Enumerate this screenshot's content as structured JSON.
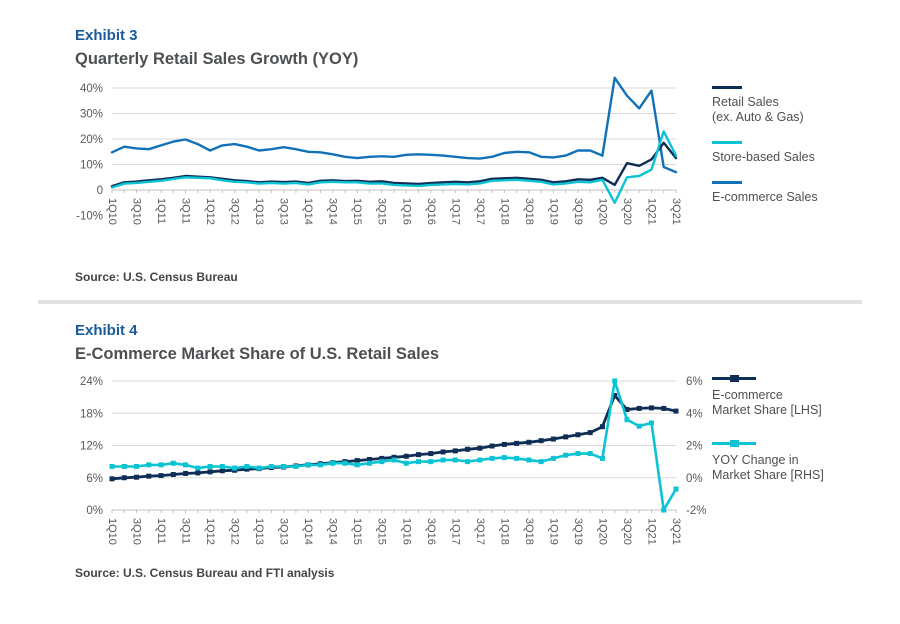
{
  "colors": {
    "navy": "#0e2e55",
    "cyan": "#0cc3d4",
    "blue": "#1272b8",
    "heading_blue": "#1b5a9b",
    "title_gray": "#4d5053",
    "source_gray": "#454545",
    "axis_gray": "#595959",
    "grid": "#d8d8d8",
    "axis_line": "#c2c2c2",
    "divider": "#e1e1e3"
  },
  "exhibit3": {
    "heading": "Exhibit 3",
    "title": "Quarterly Retail Sales Growth (YOY)",
    "source": "Source: U.S. Census Bureau",
    "legend": [
      {
        "lines": [
          "Retail Sales",
          "(ex. Auto & Gas)"
        ],
        "color_key": "navy"
      },
      {
        "lines": [
          "Store-based Sales",
          ""
        ],
        "color_key": "cyan"
      },
      {
        "lines": [
          "E-commerce Sales",
          ""
        ],
        "color_key": "blue"
      }
    ]
  },
  "exhibit4": {
    "heading": "Exhibit 4",
    "title": "E-Commerce Market Share of U.S. Retail Sales",
    "source": "Source: U.S. Census Bureau and FTI analysis",
    "legend": [
      {
        "lines": [
          "E-commerce",
          "Market Share [LHS]"
        ],
        "color_key": "navy"
      },
      {
        "lines": [
          "YOY Change in",
          "Market Share [RHS]"
        ],
        "color_key": "cyan"
      }
    ]
  },
  "chart_data": [
    {
      "type": "line",
      "title": "Quarterly Retail Sales Growth (YOY)",
      "x": [
        "1Q10",
        "2Q10",
        "3Q10",
        "4Q10",
        "1Q11",
        "2Q11",
        "3Q11",
        "4Q11",
        "1Q12",
        "2Q12",
        "3Q12",
        "4Q12",
        "1Q13",
        "2Q13",
        "3Q13",
        "4Q13",
        "1Q14",
        "2Q14",
        "3Q14",
        "4Q14",
        "1Q15",
        "2Q15",
        "3Q15",
        "4Q15",
        "1Q16",
        "2Q16",
        "3Q16",
        "4Q16",
        "1Q17",
        "2Q17",
        "3Q17",
        "4Q17",
        "1Q18",
        "2Q18",
        "3Q18",
        "4Q18",
        "1Q19",
        "2Q19",
        "3Q19",
        "4Q19",
        "1Q20",
        "2Q20",
        "3Q20",
        "4Q20",
        "1Q21",
        "2Q21",
        "3Q21"
      ],
      "x_tick_labels": [
        "1Q10",
        "3Q10",
        "1Q11",
        "3Q11",
        "1Q12",
        "3Q12",
        "1Q13",
        "3Q13",
        "1Q14",
        "3Q14",
        "1Q15",
        "3Q15",
        "1Q16",
        "3Q16",
        "1Q17",
        "3Q17",
        "1Q18",
        "3Q18",
        "1Q19",
        "3Q19",
        "1Q20",
        "3Q20",
        "1Q21",
        "3Q21"
      ],
      "ylim": [
        -10,
        44
      ],
      "y_gridlines": [
        {
          "value": 40,
          "label": "40%",
          "line": true
        },
        {
          "value": 30,
          "label": "30%",
          "line": true
        },
        {
          "value": 20,
          "label": "20%",
          "line": true
        },
        {
          "value": 10,
          "label": "10%",
          "line": true
        },
        {
          "value": 0,
          "label": "0",
          "line": true,
          "axis": true
        },
        {
          "value": -10,
          "label": "-10%",
          "line": false
        }
      ],
      "grid": "horizontal",
      "legend_position": "right",
      "series": [
        {
          "name": "E-commerce Sales",
          "color_key": "blue",
          "marker": false,
          "values": [
            14.8,
            17.0,
            16.3,
            16.0,
            17.5,
            19.0,
            19.8,
            18.0,
            15.5,
            17.5,
            18.0,
            17.0,
            15.5,
            16.0,
            16.8,
            16.0,
            15.0,
            14.8,
            14.0,
            13.0,
            12.5,
            13.0,
            13.2,
            13.0,
            13.8,
            14.0,
            13.8,
            13.5,
            13.0,
            12.5,
            12.3,
            13.0,
            14.5,
            15.0,
            14.8,
            13.0,
            12.8,
            13.5,
            15.5,
            15.5,
            13.5,
            44.0,
            37.0,
            32.0,
            39.0,
            9.0,
            7.0
          ]
        },
        {
          "name": "Retail Sales (ex. Auto & Gas)",
          "color_key": "navy",
          "marker": false,
          "values": [
            1.5,
            3.0,
            3.3,
            3.8,
            4.2,
            4.8,
            5.5,
            5.2,
            5.0,
            4.4,
            3.8,
            3.5,
            3.0,
            3.3,
            3.1,
            3.3,
            2.8,
            3.6,
            3.8,
            3.5,
            3.6,
            3.2,
            3.4,
            2.8,
            2.6,
            2.4,
            2.7,
            3.0,
            3.2,
            3.0,
            3.4,
            4.4,
            4.6,
            4.8,
            4.4,
            4.0,
            3.0,
            3.4,
            4.2,
            4.0,
            4.8,
            2.0,
            10.5,
            9.5,
            12.0,
            18.5,
            12.5
          ]
        },
        {
          "name": "Store-based Sales",
          "color_key": "cyan",
          "marker": false,
          "values": [
            1.0,
            2.5,
            2.8,
            3.2,
            3.6,
            4.3,
            5.0,
            4.8,
            4.6,
            3.8,
            3.2,
            3.0,
            2.5,
            2.8,
            2.5,
            2.8,
            2.2,
            3.0,
            3.2,
            3.0,
            3.0,
            2.5,
            2.6,
            2.0,
            1.8,
            1.6,
            2.0,
            2.2,
            2.4,
            2.2,
            2.6,
            3.6,
            3.8,
            4.0,
            3.6,
            3.2,
            2.2,
            2.6,
            3.2,
            3.0,
            4.0,
            -5.0,
            5.0,
            5.5,
            8.0,
            23.0,
            13.5
          ]
        }
      ]
    },
    {
      "type": "line",
      "title": "E-Commerce Market Share of U.S. Retail Sales",
      "x": [
        "1Q10",
        "2Q10",
        "3Q10",
        "4Q10",
        "1Q11",
        "2Q11",
        "3Q11",
        "4Q11",
        "1Q12",
        "2Q12",
        "3Q12",
        "4Q12",
        "1Q13",
        "2Q13",
        "3Q13",
        "4Q13",
        "1Q14",
        "2Q14",
        "3Q14",
        "4Q14",
        "1Q15",
        "2Q15",
        "3Q15",
        "4Q15",
        "1Q16",
        "2Q16",
        "3Q16",
        "4Q16",
        "1Q17",
        "2Q17",
        "3Q17",
        "4Q17",
        "1Q18",
        "2Q18",
        "3Q18",
        "4Q18",
        "1Q19",
        "2Q19",
        "3Q19",
        "4Q19",
        "1Q20",
        "2Q20",
        "3Q20",
        "4Q20",
        "1Q21",
        "2Q21",
        "3Q21"
      ],
      "x_tick_labels": [
        "1Q10",
        "3Q10",
        "1Q11",
        "3Q11",
        "1Q12",
        "3Q12",
        "1Q13",
        "3Q13",
        "1Q14",
        "3Q14",
        "1Q15",
        "3Q15",
        "1Q16",
        "3Q16",
        "1Q17",
        "3Q17",
        "1Q18",
        "3Q18",
        "1Q19",
        "3Q19",
        "1Q20",
        "3Q20",
        "1Q21",
        "3Q21"
      ],
      "left_axis": {
        "range": [
          0,
          24
        ],
        "ticks": [
          "24%",
          "18%",
          "12%",
          "6%",
          "0%"
        ]
      },
      "right_axis": {
        "range": [
          -2,
          6
        ],
        "ticks": [
          "6%",
          "4%",
          "2%",
          "0%",
          "-2%"
        ]
      },
      "y_gridlines": [
        {
          "value": 24,
          "label": "24%",
          "right_label": "6%",
          "line": true
        },
        {
          "value": 18,
          "label": "18%",
          "right_label": "4%",
          "line": true
        },
        {
          "value": 12,
          "label": "12%",
          "right_label": "2%",
          "line": true
        },
        {
          "value": 6,
          "label": "6%",
          "right_label": "0%",
          "line": true
        },
        {
          "value": 0,
          "label": "0%",
          "right_label": "-2%",
          "line": true,
          "axis": true
        }
      ],
      "grid": "horizontal",
      "legend_position": "right",
      "series": [
        {
          "name": "E-commerce Market Share [LHS]",
          "axis": "left",
          "color_key": "navy",
          "marker": true,
          "values": [
            5.8,
            6.0,
            6.1,
            6.3,
            6.4,
            6.6,
            6.8,
            6.9,
            7.1,
            7.3,
            7.4,
            7.6,
            7.7,
            7.9,
            8.0,
            8.2,
            8.4,
            8.6,
            8.8,
            9.0,
            9.2,
            9.4,
            9.6,
            9.8,
            10.0,
            10.3,
            10.5,
            10.8,
            11.0,
            11.3,
            11.5,
            11.9,
            12.2,
            12.4,
            12.6,
            12.9,
            13.2,
            13.6,
            14.0,
            14.4,
            15.5,
            21.3,
            18.7,
            18.9,
            19.0,
            18.9,
            18.4
          ]
        },
        {
          "name": "YOY Change in Market Share [RHS]",
          "axis": "right",
          "color_key": "cyan",
          "marker": true,
          "values": [
            0.7,
            0.7,
            0.7,
            0.8,
            0.8,
            0.9,
            0.8,
            0.6,
            0.7,
            0.7,
            0.6,
            0.7,
            0.6,
            0.7,
            0.7,
            0.7,
            0.8,
            0.8,
            0.9,
            0.9,
            0.8,
            0.9,
            1.0,
            1.1,
            0.9,
            1.0,
            1.0,
            1.1,
            1.1,
            1.0,
            1.1,
            1.2,
            1.25,
            1.2,
            1.1,
            1.0,
            1.2,
            1.4,
            1.5,
            1.5,
            1.2,
            6.0,
            3.6,
            3.2,
            3.4,
            -2.0,
            -0.7
          ]
        }
      ]
    }
  ]
}
